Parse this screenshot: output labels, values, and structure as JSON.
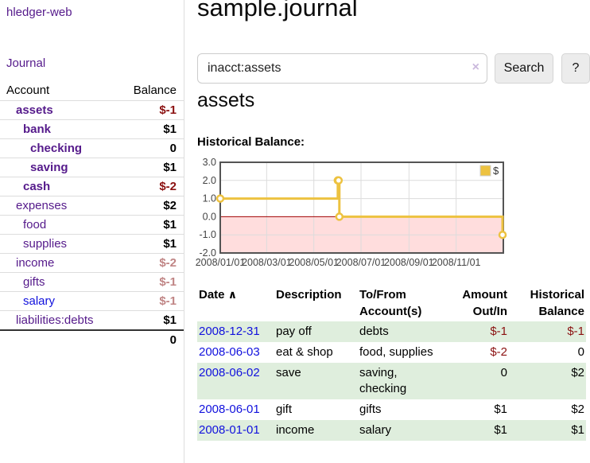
{
  "app": {
    "brand": "hledger-web",
    "nav_journal": "Journal"
  },
  "colors": {
    "link_purple": "#551a8b",
    "link_blue": "#1111dd",
    "negative_strong": "#8b1111",
    "negative_soft": "#c08585",
    "row_green": "#dfeedd",
    "series_gold": "#edc240",
    "negative_region_pink": "#ffdddd",
    "zero_line_red": "#a00000"
  },
  "sidebar": {
    "header": {
      "account": "Account",
      "balance": "Balance"
    },
    "accounts": [
      {
        "name": "assets",
        "depth": 0,
        "bold": true,
        "link": "purple",
        "balance": "$-1",
        "neg": "strong"
      },
      {
        "name": "bank",
        "depth": 1,
        "bold": true,
        "link": "purple",
        "balance": "$1",
        "neg": "none"
      },
      {
        "name": "checking",
        "depth": 2,
        "bold": true,
        "link": "purple",
        "balance": "0",
        "neg": "none"
      },
      {
        "name": "saving",
        "depth": 2,
        "bold": true,
        "link": "purple",
        "balance": "$1",
        "neg": "none"
      },
      {
        "name": "cash",
        "depth": 1,
        "bold": true,
        "link": "purple",
        "balance": "$-2",
        "neg": "strong"
      },
      {
        "name": "expenses",
        "depth": 0,
        "bold": false,
        "link": "purple",
        "balance": "$2",
        "neg": "none"
      },
      {
        "name": "food",
        "depth": 1,
        "bold": false,
        "link": "purple",
        "balance": "$1",
        "neg": "none"
      },
      {
        "name": "supplies",
        "depth": 1,
        "bold": false,
        "link": "purple",
        "balance": "$1",
        "neg": "none"
      },
      {
        "name": "income",
        "depth": 0,
        "bold": false,
        "link": "purple",
        "balance": "$-2",
        "neg": "soft"
      },
      {
        "name": "gifts",
        "depth": 1,
        "bold": false,
        "link": "purple",
        "balance": "$-1",
        "neg": "soft"
      },
      {
        "name": "salary",
        "depth": 1,
        "bold": false,
        "link": "blue",
        "balance": "$-1",
        "neg": "soft"
      },
      {
        "name": "liabilities:debts",
        "depth": 0,
        "bold": false,
        "link": "purple",
        "balance": "$1",
        "neg": "none"
      }
    ],
    "total": "0"
  },
  "main": {
    "title": "sample.journal",
    "search": {
      "value": "inacct:assets",
      "clear_icon": "×",
      "button_label": "Search",
      "help_label": "?"
    },
    "account_heading": "assets",
    "chart_label": "Historical Balance:"
  },
  "chart_data": {
    "type": "line",
    "step": true,
    "title": "Historical Balance",
    "series": [
      {
        "name": "$",
        "color": "#edc240",
        "points": [
          [
            "2008-01-01",
            1
          ],
          [
            "2008-06-01",
            2
          ],
          [
            "2008-06-02",
            2
          ],
          [
            "2008-06-03",
            0
          ],
          [
            "2008-12-31",
            -1
          ]
        ]
      }
    ],
    "ylim": [
      -2,
      3
    ],
    "yticks": [
      3,
      2,
      1,
      0,
      -1,
      -2
    ],
    "xticks": [
      "2008/01/01",
      "2008/03/01",
      "2008/05/01",
      "2008/07/01",
      "2008/09/01",
      "2008/11/01"
    ],
    "xrange": [
      "2008-01-01",
      "2009-01-01"
    ],
    "grid": true,
    "legend_position": "top-right",
    "negative_fill": "#ffdddd",
    "zero_line_color": "#a00000"
  },
  "register": {
    "headers": {
      "date": {
        "label": "Date",
        "sort_icon": "∧"
      },
      "description": {
        "label": "Description"
      },
      "accounts": {
        "line1": "To/From",
        "line2": "Account(s)"
      },
      "amount": {
        "line1": "Amount",
        "line2": "Out/In"
      },
      "balance": {
        "line1": "Historical",
        "line2": "Balance"
      }
    },
    "rows": [
      {
        "date": "2008-12-31",
        "description": "pay off",
        "accounts": "debts",
        "amount": "$-1",
        "amount_negative": true,
        "balance": "$-1",
        "balance_negative": true
      },
      {
        "date": "2008-06-03",
        "description": "eat & shop",
        "accounts": "food, supplies",
        "amount": "$-2",
        "amount_negative": true,
        "balance": "0",
        "balance_negative": false
      },
      {
        "date": "2008-06-02",
        "description": "save",
        "accounts": "saving, checking",
        "amount": "0",
        "amount_negative": false,
        "balance": "$2",
        "balance_negative": false
      },
      {
        "date": "2008-06-01",
        "description": "gift",
        "accounts": "gifts",
        "amount": "$1",
        "amount_negative": false,
        "balance": "$2",
        "balance_negative": false
      },
      {
        "date": "2008-01-01",
        "description": "income",
        "accounts": "salary",
        "amount": "$1",
        "amount_negative": false,
        "balance": "$1",
        "balance_negative": false
      }
    ]
  }
}
